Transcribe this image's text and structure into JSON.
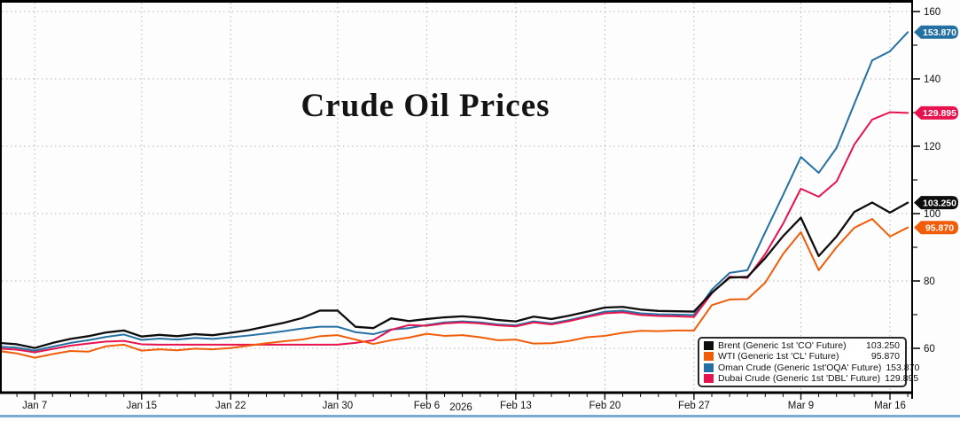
{
  "title": "Crude Oil Prices",
  "axis": {
    "year_label": "2026",
    "x_ticks": [
      {
        "label": "Jan 7",
        "i": 2
      },
      {
        "label": "Jan 15",
        "i": 8
      },
      {
        "label": "Jan 22",
        "i": 13
      },
      {
        "label": "Jan 30",
        "i": 19
      },
      {
        "label": "Feb 6",
        "i": 24
      },
      {
        "label": "Feb 13",
        "i": 29
      },
      {
        "label": "Feb 20",
        "i": 34
      },
      {
        "label": "Feb 27",
        "i": 39
      },
      {
        "label": "Mar 9",
        "i": 45
      },
      {
        "label": "Mar 16",
        "i": 50
      }
    ],
    "y_ticks": [
      60,
      80,
      100,
      120,
      140,
      160
    ],
    "y_minor_ticks": [
      70,
      90,
      110,
      130,
      150
    ]
  },
  "colors": {
    "background": "#fdfdfd",
    "grid": "#b5b5b5",
    "frame": "#000000",
    "tick_text": "#111111",
    "bottom_rule": "#7aaccf"
  },
  "chart_data": {
    "type": "line",
    "title": "Crude Oil Prices",
    "xlabel": "2026",
    "ylabel": "",
    "ylim": [
      60,
      160
    ],
    "grid": "dotted",
    "legend_position": "bottom-right",
    "x": [
      "Jan 5",
      "Jan 6",
      "Jan 7",
      "Jan 8",
      "Jan 9",
      "Jan 12",
      "Jan 13",
      "Jan 14",
      "Jan 15",
      "Jan 16",
      "Jan 19",
      "Jan 20",
      "Jan 21",
      "Jan 22",
      "Jan 23",
      "Jan 26",
      "Jan 27",
      "Jan 28",
      "Jan 29",
      "Jan 30",
      "Feb 2",
      "Feb 3",
      "Feb 4",
      "Feb 5",
      "Feb 6",
      "Feb 9",
      "Feb 10",
      "Feb 11",
      "Feb 12",
      "Feb 13",
      "Feb 16",
      "Feb 17",
      "Feb 18",
      "Feb 19",
      "Feb 20",
      "Feb 23",
      "Feb 24",
      "Feb 25",
      "Feb 26",
      "Feb 27",
      "Mar 2",
      "Mar 3",
      "Mar 4",
      "Mar 5",
      "Mar 6",
      "Mar 9",
      "Mar 10",
      "Mar 11",
      "Mar 12",
      "Mar 13",
      "Mar 16",
      "Mar 17"
    ],
    "series": [
      {
        "id": "brent",
        "name": "Brent (Generic 1st 'CO' Future)",
        "last_value": "103.250",
        "color": "#0d0d0d",
        "values": [
          61.6,
          61.2,
          60.1,
          61.6,
          62.8,
          63.6,
          64.7,
          65.3,
          63.5,
          64.0,
          63.6,
          64.2,
          63.9,
          64.6,
          65.4,
          66.5,
          67.6,
          69.0,
          71.2,
          71.2,
          66.4,
          66.0,
          68.9,
          68.1,
          68.7,
          69.2,
          69.5,
          69.1,
          68.4,
          68.0,
          69.4,
          68.7,
          69.7,
          70.9,
          72.1,
          72.3,
          71.5,
          71.1,
          71.0,
          70.9,
          76.5,
          81.0,
          81.2,
          86.8,
          93.3,
          98.8,
          87.4,
          93.2,
          100.5,
          103.3,
          100.3,
          103.25
        ]
      },
      {
        "id": "wti",
        "name": "WTI (Generic 1st 'CL' Future)",
        "last_value": "95.870",
        "color": "#f05c08",
        "values": [
          59.2,
          58.5,
          57.2,
          58.3,
          59.2,
          59.0,
          60.6,
          61.1,
          59.3,
          59.7,
          59.4,
          59.9,
          59.7,
          60.1,
          60.8,
          61.5,
          62.1,
          62.6,
          63.6,
          63.9,
          62.6,
          61.3,
          62.4,
          63.2,
          64.3,
          63.7,
          63.9,
          63.3,
          62.4,
          62.6,
          61.4,
          61.5,
          62.2,
          63.3,
          63.7,
          64.6,
          65.2,
          65.1,
          65.3,
          65.3,
          72.8,
          74.5,
          74.6,
          79.5,
          88.0,
          94.5,
          83.2,
          90.0,
          95.8,
          98.4,
          93.2,
          95.87
        ]
      },
      {
        "id": "oman",
        "name": "Oman Crude (Generic 1st'OQA' Future)",
        "last_value": "153.870",
        "color": "#2470a3",
        "values": [
          60.5,
          60.2,
          59.3,
          60.5,
          61.6,
          62.4,
          63.4,
          64.1,
          62.5,
          62.9,
          62.6,
          63.1,
          62.8,
          63.3,
          63.8,
          64.4,
          65.1,
          65.9,
          66.4,
          66.4,
          64.8,
          64.2,
          65.6,
          66.0,
          66.9,
          67.7,
          68.0,
          67.7,
          67.1,
          66.8,
          68.0,
          67.4,
          68.4,
          69.6,
          70.9,
          71.2,
          70.4,
          70.1,
          70.0,
          69.9,
          77.4,
          82.4,
          83.2,
          94.5,
          105.5,
          116.8,
          112.1,
          119.5,
          132.6,
          145.5,
          148.2,
          153.87
        ]
      },
      {
        "id": "dubai",
        "name": "Dubai Crude (Generic 1st 'DBL' Future)",
        "last_value": "129.895",
        "color": "#e6134e",
        "values": [
          59.9,
          59.6,
          58.8,
          59.8,
          60.8,
          61.4,
          62.0,
          62.2,
          61.2,
          61.1,
          61.1,
          61.1,
          61.1,
          61.1,
          61.1,
          61.1,
          61.1,
          61.1,
          61.1,
          61.1,
          61.6,
          62.4,
          65.5,
          66.9,
          66.7,
          67.4,
          67.7,
          67.4,
          66.8,
          66.5,
          67.7,
          67.1,
          68.1,
          69.3,
          70.4,
          70.7,
          69.9,
          69.6,
          69.5,
          69.3,
          76.3,
          81.3,
          80.9,
          88.0,
          97.0,
          107.4,
          105.0,
          109.5,
          120.5,
          127.9,
          130.1,
          129.895
        ]
      }
    ]
  }
}
